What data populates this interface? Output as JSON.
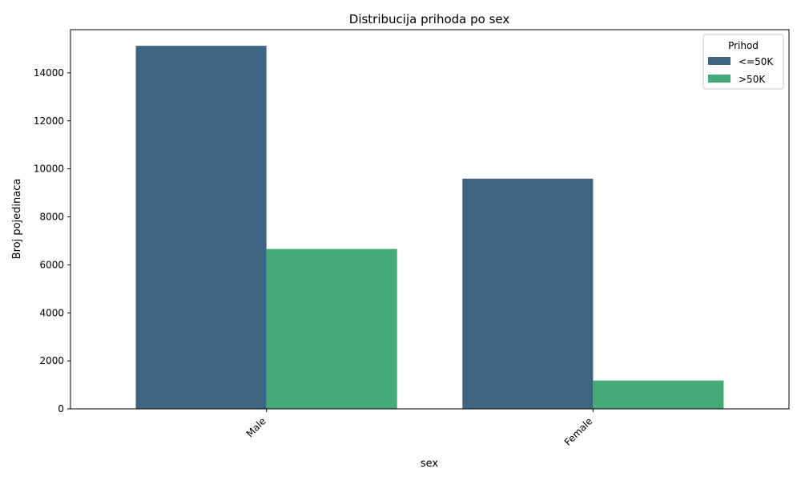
{
  "chart_data": {
    "type": "bar",
    "title": "Distribucija prihoda po sex",
    "xlabel": "sex",
    "ylabel": "Broj pojedinaca",
    "categories": [
      "Male",
      "Female"
    ],
    "series": [
      {
        "name": "<=50K",
        "values": [
          15128,
          9592
        ],
        "color": "#3e6682"
      },
      {
        "name": ">50K",
        "values": [
          6662,
          1179
        ],
        "color": "#45a978"
      }
    ],
    "ylim": [
      0,
      15800
    ],
    "yticks": [
      0,
      2000,
      4000,
      6000,
      8000,
      10000,
      12000,
      14000
    ],
    "legend": {
      "title": "Prihod",
      "placement": "top-right"
    },
    "grid": false
  }
}
